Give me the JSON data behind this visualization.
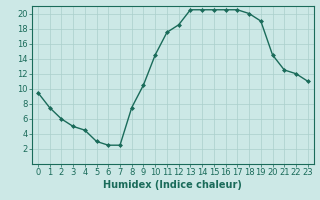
{
  "x": [
    0,
    1,
    2,
    3,
    4,
    5,
    6,
    7,
    8,
    9,
    10,
    11,
    12,
    13,
    14,
    15,
    16,
    17,
    18,
    19,
    20,
    21,
    22,
    23
  ],
  "y": [
    9.5,
    7.5,
    6.0,
    5.0,
    4.5,
    3.0,
    2.5,
    2.5,
    7.5,
    10.5,
    14.5,
    17.5,
    18.5,
    20.5,
    20.5,
    20.5,
    20.5,
    20.5,
    20.0,
    19.0,
    14.5,
    12.5,
    12.0,
    11.0
  ],
  "line_color": "#1a6b5a",
  "marker": "D",
  "marker_size": 2.0,
  "bg_color": "#cce8e6",
  "grid_color": "#aacfcc",
  "xlabel": "Humidex (Indice chaleur)",
  "xlim": [
    -0.5,
    23.5
  ],
  "ylim": [
    0,
    21
  ],
  "yticks": [
    2,
    4,
    6,
    8,
    10,
    12,
    14,
    16,
    18,
    20
  ],
  "xticks": [
    0,
    1,
    2,
    3,
    4,
    5,
    6,
    7,
    8,
    9,
    10,
    11,
    12,
    13,
    14,
    15,
    16,
    17,
    18,
    19,
    20,
    21,
    22,
    23
  ],
  "axis_color": "#1a6b5a",
  "tick_label_fontsize": 6.0,
  "xlabel_fontsize": 7.0,
  "linewidth": 1.0
}
